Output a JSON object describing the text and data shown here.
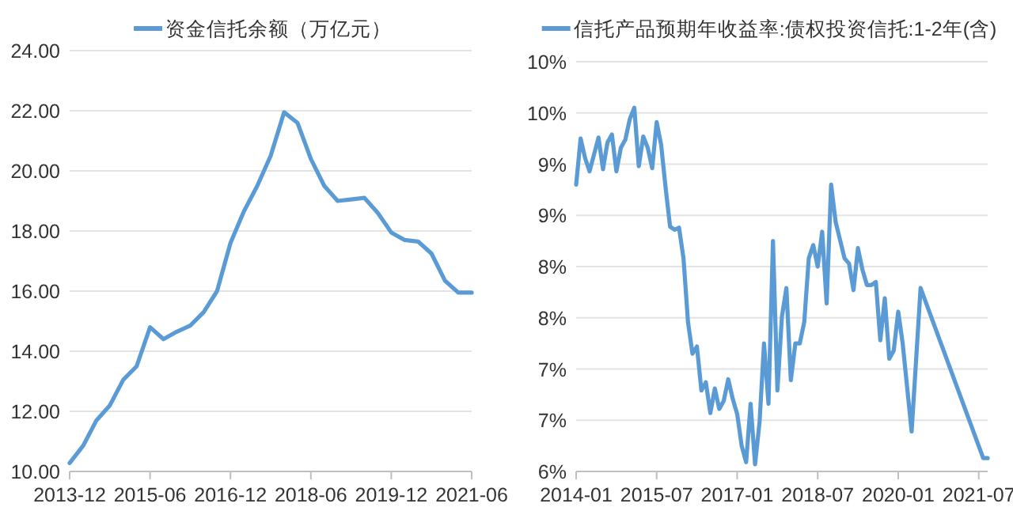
{
  "chart_data": [
    {
      "type": "line",
      "categories": [
        "2013-12",
        null,
        null,
        null,
        null,
        null,
        "2015-06",
        null,
        null,
        null,
        null,
        null,
        "2016-12",
        null,
        null,
        null,
        null,
        null,
        "2018-06",
        null,
        null,
        null,
        null,
        null,
        "2019-12",
        null,
        null,
        null,
        null,
        null,
        "2021-06"
      ],
      "series": [
        {
          "name": "资金信托余额（万亿元）",
          "color": "#5b9bd5",
          "values": [
            10.28,
            10.85,
            11.7,
            12.2,
            13.05,
            13.5,
            14.8,
            14.4,
            14.65,
            14.85,
            15.3,
            16.0,
            17.6,
            18.65,
            19.5,
            20.5,
            21.95,
            21.6,
            20.4,
            19.5,
            19.0,
            19.05,
            19.1,
            18.6,
            17.95,
            17.7,
            17.65,
            17.25,
            16.35,
            15.95,
            15.95
          ]
        }
      ],
      "ylim": [
        10,
        24
      ],
      "yticks": [
        {
          "value": 10,
          "label": "10.00"
        },
        {
          "value": 12,
          "label": "12.00"
        },
        {
          "value": 14,
          "label": "14.00"
        },
        {
          "value": 16,
          "label": "16.00"
        },
        {
          "value": 18,
          "label": "18.00"
        },
        {
          "value": 20,
          "label": "20.00"
        },
        {
          "value": 22,
          "label": "22.00"
        },
        {
          "value": 24,
          "label": "24.00"
        }
      ],
      "grid": "y",
      "legend": "top",
      "marker": "none",
      "line_style": "solid"
    },
    {
      "type": "line",
      "x": [
        "2014-01",
        "2014-02",
        "2014-03",
        "2014-04",
        "2014-06",
        "2014-07",
        "2014-08",
        "2014-09",
        "2014-10",
        "2014-11",
        "2014-12",
        "2015-01",
        "2015-02",
        "2015-03",
        "2015-04",
        "2015-05",
        "2015-06",
        "2015-07",
        "2015-08",
        "2015-09",
        "2015-10",
        "2015-11",
        "2015-12",
        "2016-01",
        "2016-02",
        "2016-03",
        "2016-04",
        "2016-05",
        "2016-06",
        "2016-07",
        "2016-08",
        "2016-09",
        "2016-10",
        "2016-11",
        "2016-12",
        "2017-01",
        "2017-02",
        "2017-03",
        "2017-04",
        "2017-05",
        "2017-06",
        "2017-07",
        "2017-08",
        "2017-09",
        "2017-10",
        "2017-11",
        "2017-12",
        "2018-01",
        "2018-02",
        "2018-03",
        "2018-04",
        "2018-05",
        "2018-06",
        "2018-07",
        "2018-08",
        "2018-09",
        "2018-10",
        "2018-11",
        "2018-12",
        "2019-01",
        "2019-02",
        "2019-03",
        "2019-04",
        "2019-05",
        "2019-06",
        "2019-07",
        "2019-08",
        "2019-09",
        "2019-10",
        "2019-11",
        "2019-12",
        "2020-01",
        "2020-02",
        "2020-04",
        "2020-06",
        "2021-08",
        "2021-09"
      ],
      "series": [
        {
          "name": "信托产品预期年收益率:债权投资信托:1-2年(含)",
          "color": "#5b9bd5",
          "values": [
            8.8,
            9.25,
            9.06,
            8.93,
            9.26,
            8.95,
            9.21,
            9.29,
            8.93,
            9.16,
            9.24,
            9.44,
            9.55,
            8.98,
            9.27,
            9.16,
            8.96,
            9.41,
            9.19,
            8.77,
            8.39,
            8.36,
            8.38,
            8.08,
            7.46,
            7.15,
            7.22,
            6.79,
            6.87,
            6.57,
            6.81,
            6.61,
            6.69,
            6.9,
            6.71,
            6.56,
            6.25,
            6.09,
            6.66,
            6.07,
            6.48,
            7.25,
            6.66,
            8.25,
            6.79,
            7.51,
            7.79,
            6.89,
            7.25,
            7.25,
            7.46,
            8.08,
            8.21,
            8.0,
            8.34,
            7.64,
            8.8,
            8.44,
            8.26,
            8.08,
            8.03,
            7.77,
            8.18,
            7.97,
            7.82,
            7.82,
            7.85,
            7.28,
            7.69,
            7.1,
            7.18,
            7.56,
            7.25,
            6.39,
            7.79,
            6.13,
            6.13
          ]
        }
      ],
      "xlim": [
        "2014-01",
        "2021-09"
      ],
      "xticks": [
        "2014-01",
        "2015-07",
        "2017-01",
        "2018-07",
        "2020-01",
        "2021-07"
      ],
      "ylim": [
        6,
        10
      ],
      "yticks": [
        {
          "value": 6,
          "label": "6%"
        },
        {
          "value": 6.5,
          "label": "7%"
        },
        {
          "value": 7,
          "label": "7%"
        },
        {
          "value": 7.5,
          "label": "8%"
        },
        {
          "value": 8,
          "label": "8%"
        },
        {
          "value": 8.5,
          "label": "9%"
        },
        {
          "value": 9,
          "label": "9%"
        },
        {
          "value": 9.5,
          "label": "10%"
        },
        {
          "value": 10,
          "label": "10%"
        }
      ],
      "grid": "y",
      "legend": "top",
      "marker": "none",
      "line_style": "solid"
    }
  ]
}
